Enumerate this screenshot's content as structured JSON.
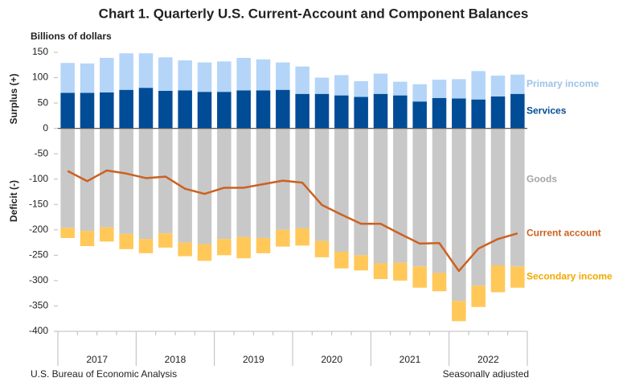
{
  "chart_data": {
    "type": "bar",
    "title": "Chart 1. Quarterly U.S. Current-Account and Component Balances",
    "y_unit_label": "Billions of dollars",
    "y_label_positive": "Surplus (+)",
    "y_label_negative": "Deficit (-)",
    "years": [
      "2017",
      "2018",
      "2019",
      "2020",
      "2021",
      "2022"
    ],
    "ylim": [
      -400,
      150
    ],
    "yticks": [
      -400,
      -350,
      -300,
      -250,
      -200,
      -150,
      -100,
      -50,
      0,
      50,
      100,
      150
    ],
    "series": [
      {
        "name": "Services",
        "type": "bar",
        "color": "#004c97",
        "values": [
          70,
          70,
          71,
          76,
          80,
          74,
          75,
          72,
          72,
          75,
          75,
          76,
          68,
          68,
          65,
          62,
          68,
          65,
          53,
          60,
          59,
          57,
          63,
          68
        ]
      },
      {
        "name": "Primary income",
        "type": "bar",
        "color": "#b4d5f8",
        "label_color": "#9cc3e6",
        "values": [
          59,
          58,
          68,
          72,
          68,
          66,
          59,
          58,
          60,
          64,
          61,
          54,
          54,
          32,
          40,
          31,
          40,
          27,
          34,
          36,
          38,
          56,
          41,
          38
        ]
      },
      {
        "name": "Goods",
        "type": "bar",
        "color": "#c8c8c8",
        "label_color": "#a6a6a6",
        "values": [
          -196,
          -202,
          -195,
          -208,
          -218,
          -207,
          -225,
          -228,
          -218,
          -214,
          -216,
          -200,
          -197,
          -222,
          -243,
          -250,
          -266,
          -265,
          -272,
          -285,
          -340,
          -310,
          -270,
          -272
        ]
      },
      {
        "name": "Secondary income",
        "type": "bar",
        "color": "#ffc859",
        "label_color": "#f2a900",
        "values": [
          -20,
          -30,
          -28,
          -30,
          -28,
          -28,
          -27,
          -33,
          -32,
          -42,
          -30,
          -33,
          -34,
          -32,
          -33,
          -30,
          -31,
          -35,
          -42,
          -36,
          -40,
          -42,
          -53,
          -42
        ]
      },
      {
        "name": "Current account",
        "type": "line",
        "color": "#cc6121",
        "values": [
          -84,
          -104,
          -83,
          -89,
          -98,
          -95,
          -119,
          -129,
          -117,
          -117,
          -110,
          -103,
          -107,
          -151,
          -170,
          -188,
          -188,
          -208,
          -227,
          -226,
          -281,
          -237,
          -218,
          -207
        ]
      }
    ],
    "source": "U.S. Bureau of Economic Analysis",
    "note": "Seasonally adjusted"
  }
}
